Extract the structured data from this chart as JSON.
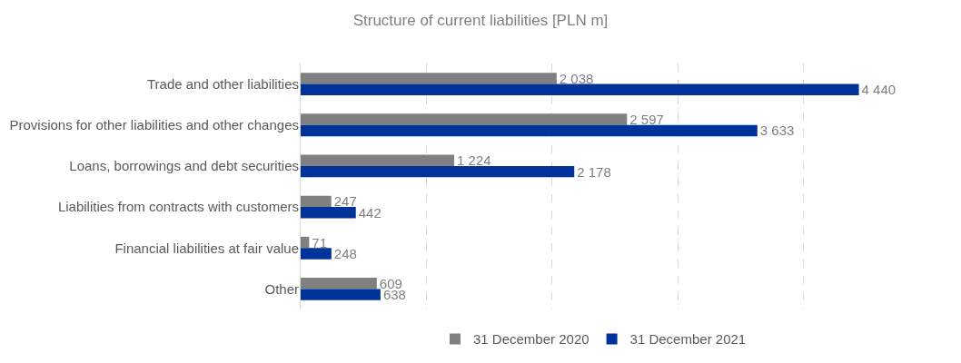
{
  "chart_data": {
    "type": "bar",
    "title": "Structure of current liabilities [PLN m]",
    "orientation": "horizontal",
    "categories": [
      "Trade and other liabilities",
      "Provisions for other liabilities and other changes",
      "Loans, borrowings and debt securities",
      "Liabilities from contracts with customers",
      "Financial liabilities at fair value",
      "Other"
    ],
    "series": [
      {
        "name": "31 December 2020",
        "color": "#808080",
        "values": [
          2038,
          2597,
          1224,
          247,
          71,
          609
        ],
        "value_labels": [
          "2 038",
          "2 597",
          "1 224",
          "247",
          "71",
          "609"
        ]
      },
      {
        "name": "31 December 2021",
        "color": "#003399",
        "values": [
          4440,
          3633,
          2178,
          442,
          248,
          638
        ],
        "value_labels": [
          "4 440",
          "3 633",
          "2 178",
          "442",
          "248",
          "638"
        ]
      }
    ],
    "grid": "x",
    "tick_labels": "y",
    "legend": "bottom"
  }
}
